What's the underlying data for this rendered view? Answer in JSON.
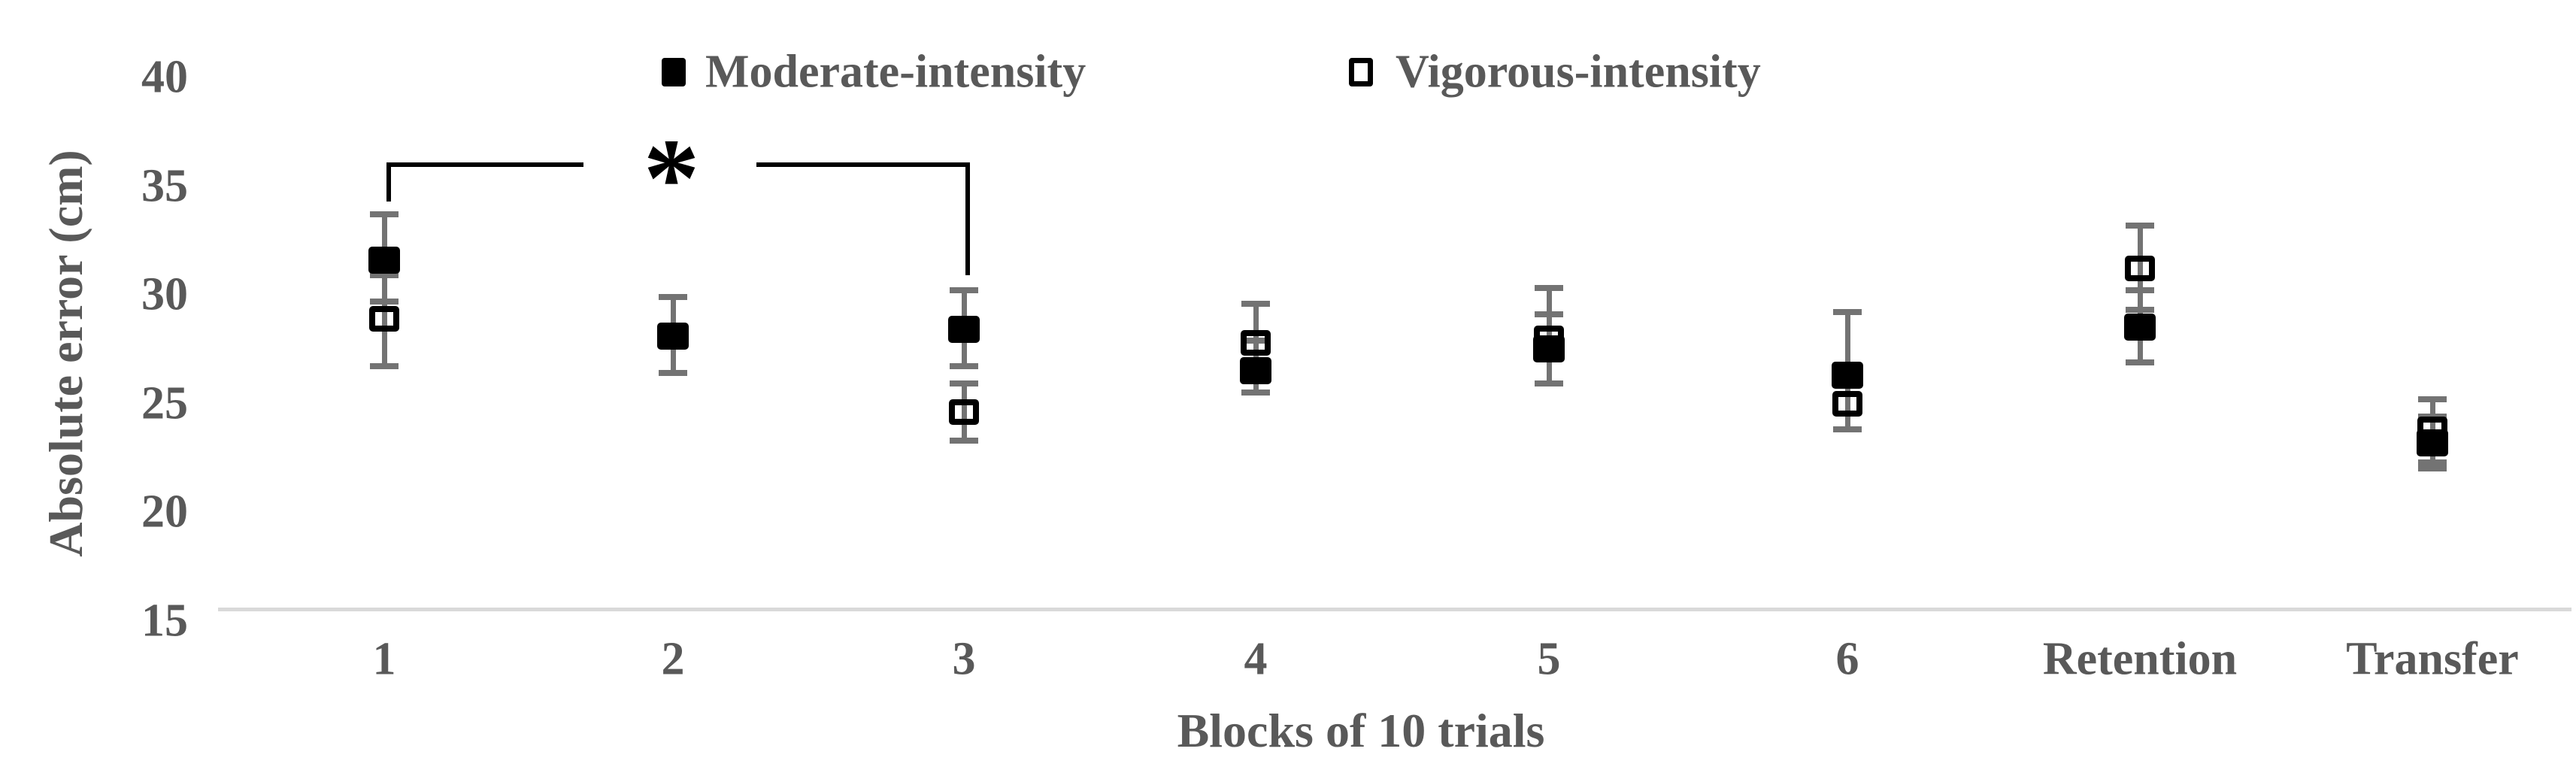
{
  "chart_data": {
    "type": "scatter",
    "title": "",
    "xlabel": "Blocks of 10 trials",
    "ylabel": "Absolute error (cm)",
    "categories": [
      "1",
      "2",
      "3",
      "4",
      "5",
      "6",
      "Retention",
      "Transfer"
    ],
    "y_axis": {
      "ticks": [
        40,
        35,
        30,
        25,
        20,
        15
      ],
      "min": 15,
      "max": 40,
      "step": 5
    },
    "grid": false,
    "legend_position": "top-center",
    "series": [
      {
        "name": "Moderate-intensity",
        "marker": "filled-square",
        "color": "#000000",
        "points": [
          {
            "block": "1",
            "value": 31.6,
            "err_hi": 33.7,
            "err_lo": 29.7
          },
          {
            "block": "2",
            "value": 28.1,
            "err_hi": 29.9,
            "err_lo": 26.4
          },
          {
            "block": "3",
            "value": 28.4,
            "err_hi": 30.2,
            "err_lo": 26.7
          },
          {
            "block": "4",
            "value": 26.5,
            "err_hi": 27.9,
            "err_lo": 25.5
          },
          {
            "block": "5",
            "value": 27.5,
            "err_hi": 29.1,
            "err_lo": 25.9
          },
          {
            "block": "6",
            "value": 26.3,
            "err_hi": 29.2,
            "err_lo": 23.8
          },
          {
            "block": "Retention",
            "value": 28.5,
            "err_hi": 30.2,
            "err_lo": 26.9
          },
          {
            "block": "Transfer",
            "value": 23.2,
            "err_hi": 24.4,
            "err_lo": 22.0
          }
        ]
      },
      {
        "name": "Vigorous-intensity",
        "marker": "open-square",
        "color": "#000000",
        "points": [
          {
            "block": "1",
            "value": 28.9,
            "err_hi": 30.9,
            "err_lo": 26.7
          },
          {
            "block": "2",
            "value": null,
            "err_hi": null,
            "err_lo": null
          },
          {
            "block": "3",
            "value": 24.6,
            "err_hi": 25.9,
            "err_lo": 23.3
          },
          {
            "block": "4",
            "value": 27.8,
            "err_hi": 29.6,
            "err_lo": 26.1
          },
          {
            "block": "5",
            "value": 28.0,
            "err_hi": 30.3,
            "err_lo": 25.9
          },
          {
            "block": "6",
            "value": 25.0,
            "err_hi": 25.9,
            "err_lo": 23.8
          },
          {
            "block": "Retention",
            "value": 31.2,
            "err_hi": 33.2,
            "err_lo": 29.3
          },
          {
            "block": "Transfer",
            "value": 23.8,
            "err_hi": 25.2,
            "err_lo": 22.3
          }
        ]
      }
    ],
    "annotation": {
      "symbol": "*",
      "meaning": "significant difference bracket",
      "spans_blocks": [
        "1",
        "3"
      ]
    },
    "colors": {
      "marker": "#000000",
      "error_bar": "#737373",
      "axis_text": "#595959",
      "axis_line": "#d9d9d9",
      "background": "#ffffff"
    }
  }
}
